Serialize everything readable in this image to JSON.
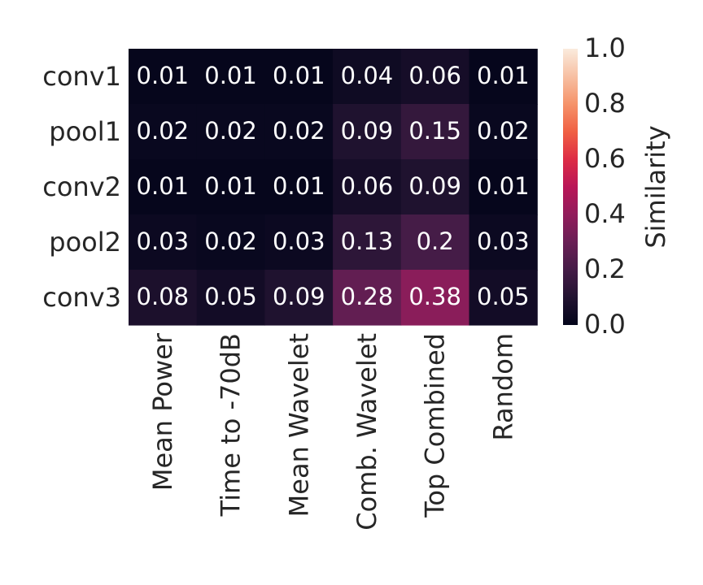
{
  "chart_data": {
    "type": "heatmap",
    "rows": [
      "conv1",
      "pool1",
      "conv2",
      "pool2",
      "conv3"
    ],
    "columns": [
      "Mean Power",
      "Time to -70dB",
      "Mean Wavelet",
      "Comb. Wavelet",
      "Top Combined",
      "Random"
    ],
    "values": [
      [
        0.01,
        0.01,
        0.01,
        0.04,
        0.06,
        0.01
      ],
      [
        0.02,
        0.02,
        0.02,
        0.09,
        0.15,
        0.02
      ],
      [
        0.01,
        0.01,
        0.01,
        0.06,
        0.09,
        0.01
      ],
      [
        0.03,
        0.02,
        0.03,
        0.13,
        0.2,
        0.03
      ],
      [
        0.08,
        0.05,
        0.09,
        0.28,
        0.38,
        0.05
      ]
    ],
    "value_labels": [
      [
        "0.01",
        "0.01",
        "0.01",
        "0.04",
        "0.06",
        "0.01"
      ],
      [
        "0.02",
        "0.02",
        "0.02",
        "0.09",
        "0.15",
        "0.02"
      ],
      [
        "0.01",
        "0.01",
        "0.01",
        "0.06",
        "0.09",
        "0.01"
      ],
      [
        "0.03",
        "0.02",
        "0.03",
        "0.13",
        "0.2",
        "0.03"
      ],
      [
        "0.08",
        "0.05",
        "0.09",
        "0.28",
        "0.38",
        "0.05"
      ]
    ],
    "colorbar": {
      "label": "Similarity",
      "range": [
        0.0,
        1.0
      ],
      "ticks": [
        "0.0",
        "0.2",
        "0.4",
        "0.6",
        "0.8",
        "1.0"
      ],
      "colormap": "rocket"
    },
    "grid": false
  }
}
